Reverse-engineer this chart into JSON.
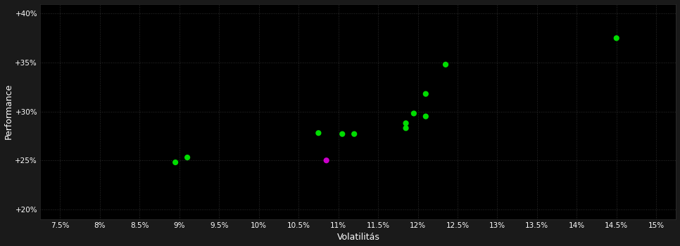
{
  "xlabel": "Volatilitás",
  "ylabel": "Performance",
  "background_color": "#1a1a1a",
  "plot_bg_color": "#000000",
  "grid_color": "#2a2a2a",
  "text_color": "#ffffff",
  "green_color": "#00dd00",
  "magenta_color": "#cc00cc",
  "green_points": [
    [
      8.95,
      24.8
    ],
    [
      9.1,
      25.3
    ],
    [
      10.75,
      27.8
    ],
    [
      11.05,
      27.7
    ],
    [
      11.2,
      27.7
    ],
    [
      11.85,
      28.8
    ],
    [
      11.85,
      28.3
    ],
    [
      11.95,
      29.8
    ],
    [
      12.1,
      29.5
    ],
    [
      12.1,
      31.8
    ],
    [
      12.35,
      34.8
    ],
    [
      14.5,
      37.5
    ]
  ],
  "magenta_points": [
    [
      10.85,
      25.0
    ]
  ],
  "xlim": [
    7.25,
    15.25
  ],
  "ylim": [
    19.0,
    41.0
  ],
  "xticks": [
    7.5,
    8.0,
    8.5,
    9.0,
    9.5,
    10.0,
    10.5,
    11.0,
    11.5,
    12.0,
    12.5,
    13.0,
    13.5,
    14.0,
    14.5,
    15.0
  ],
  "yticks": [
    20,
    25,
    30,
    35,
    40
  ],
  "marker_size": 35,
  "figsize": [
    9.66,
    3.5
  ],
  "dpi": 100
}
